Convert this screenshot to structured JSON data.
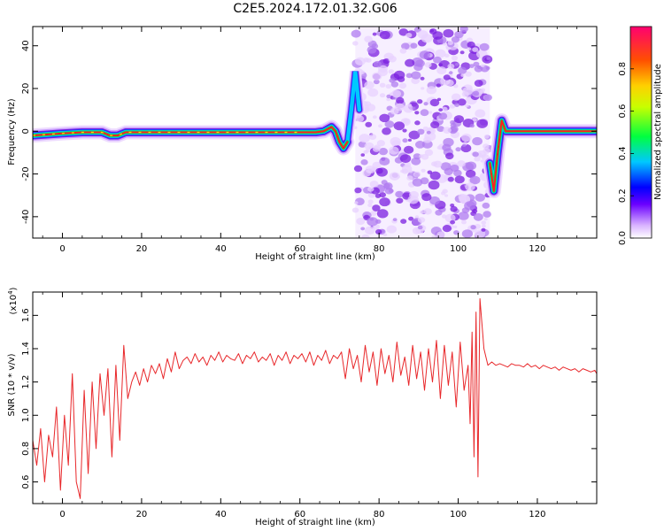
{
  "title": "C2E5.2024.172.01.32.G06",
  "colors": {
    "snr_line": "#e8272a",
    "ridge_core": "#ff1f1f",
    "noise_light": "#e8d2ff",
    "noise_dark": "#7b1fe0"
  },
  "chart_data": [
    {
      "type": "heatmap",
      "name": "spectrogram",
      "xlabel": "Height of straight line (km)",
      "ylabel": "Frequency (Hz)",
      "xlim": [
        -7.5,
        135
      ],
      "ylim": [
        -50,
        49
      ],
      "xticks": [
        0,
        20,
        40,
        60,
        80,
        100,
        120
      ],
      "xtick_labels": [
        "0",
        "20",
        "40",
        "60",
        "80",
        "100",
        "120"
      ],
      "yticks": [
        -40,
        -20,
        0,
        20,
        40
      ],
      "ytick_labels": [
        "-40",
        "-20",
        "0",
        "20",
        "40"
      ],
      "ridge": {
        "x": [
          -7.5,
          0,
          5,
          10,
          12,
          14,
          16,
          20,
          30,
          40,
          50,
          60,
          64,
          66,
          68,
          69,
          70,
          71,
          72
        ],
        "y": [
          -2,
          -1,
          -0.5,
          -0.5,
          -2,
          -2,
          -0.5,
          -0.5,
          -0.5,
          -0.5,
          -0.5,
          -0.5,
          -0.5,
          0,
          2,
          0,
          -5,
          -8,
          -5
        ]
      },
      "disturbance_edge": {
        "x": [
          72,
          73,
          74,
          75
        ],
        "y": [
          -5,
          10,
          28,
          10
        ]
      },
      "noise_region_x": [
        74,
        108
      ],
      "right_ridge": {
        "x": [
          108,
          109,
          110,
          111,
          112,
          113,
          115,
          120,
          130,
          135
        ],
        "y": [
          -15,
          -28,
          -10,
          5,
          0,
          0,
          0,
          0,
          0,
          0
        ]
      },
      "colorbar": {
        "label": "Normalized spectral amplitude",
        "range": [
          0,
          1
        ],
        "ticks": [
          0,
          0.2,
          0.4,
          0.6,
          0.8
        ],
        "tick_labels": [
          "0.0",
          "0.2",
          "0.4",
          "0.6",
          "0.8"
        ]
      }
    },
    {
      "type": "line",
      "name": "snr",
      "xlabel": "Height of straight line (km)",
      "ylabel": "SNR (10 * v/v)",
      "scale_note": "(x10",
      "scale_exp": "4",
      "xlim": [
        -7.5,
        135
      ],
      "ylim": [
        0.47,
        1.74
      ],
      "xticks": [
        0,
        20,
        40,
        60,
        80,
        100,
        120
      ],
      "xtick_labels": [
        "0",
        "20",
        "40",
        "60",
        "80",
        "100",
        "120"
      ],
      "yticks": [
        0.6,
        0.8,
        1.0,
        1.2,
        1.4,
        1.6
      ],
      "ytick_labels": [
        "0.6",
        "0.8",
        "1.0",
        "1.2",
        "1.4",
        "1.6"
      ],
      "x": [
        -7.5,
        -6.5,
        -5.5,
        -4.5,
        -3.5,
        -2.5,
        -1.5,
        -0.5,
        0.5,
        1.5,
        2.5,
        3.5,
        4.5,
        5.5,
        6.5,
        7.5,
        8.5,
        9.5,
        10.5,
        11.5,
        12.5,
        13.5,
        14.5,
        15.5,
        16.5,
        17.5,
        18.5,
        19.5,
        20.5,
        21.5,
        22.5,
        23.5,
        24.5,
        25.5,
        26.5,
        27.5,
        28.5,
        29.5,
        30.5,
        31.5,
        32.5,
        33.5,
        34.5,
        35.5,
        36.5,
        37.5,
        38.5,
        39.5,
        40.5,
        41.5,
        42.5,
        43.5,
        44.5,
        45.5,
        46.5,
        47.5,
        48.5,
        49.5,
        50.5,
        51.5,
        52.5,
        53.5,
        54.5,
        55.5,
        56.5,
        57.5,
        58.5,
        59.5,
        60.5,
        61.5,
        62.5,
        63.5,
        64.5,
        65.5,
        66.5,
        67.5,
        68.5,
        69.5,
        70.5,
        71.5,
        72.5,
        73.5,
        74.5,
        75.5,
        76.5,
        77.5,
        78.5,
        79.5,
        80.5,
        81.5,
        82.5,
        83.5,
        84.5,
        85.5,
        86.5,
        87.5,
        88.5,
        89.5,
        90.5,
        91.5,
        92.5,
        93.5,
        94.5,
        95.5,
        96.5,
        97.5,
        98.5,
        99.5,
        100.5,
        101.5,
        102.5,
        103.0,
        103.5,
        104.0,
        104.5,
        105.0,
        105.5,
        106.5,
        107.5,
        108.5,
        109.5,
        110.5,
        111.5,
        112.5,
        113.5,
        114.5,
        115.5,
        116.5,
        117.5,
        118.5,
        119.5,
        120.5,
        121.5,
        122.5,
        123.5,
        124.5,
        125.5,
        126.5,
        127.5,
        128.5,
        129.5,
        130.5,
        131.5,
        132.5,
        133.5,
        134.5,
        135.0
      ],
      "y": [
        0.85,
        0.7,
        0.92,
        0.6,
        0.88,
        0.75,
        1.05,
        0.55,
        1.0,
        0.7,
        1.25,
        0.6,
        0.5,
        1.15,
        0.65,
        1.2,
        0.8,
        1.25,
        1.0,
        1.28,
        0.75,
        1.3,
        0.85,
        1.42,
        1.1,
        1.2,
        1.26,
        1.18,
        1.28,
        1.2,
        1.3,
        1.25,
        1.31,
        1.22,
        1.34,
        1.26,
        1.38,
        1.28,
        1.33,
        1.35,
        1.31,
        1.37,
        1.32,
        1.35,
        1.3,
        1.36,
        1.33,
        1.38,
        1.32,
        1.36,
        1.34,
        1.33,
        1.37,
        1.31,
        1.36,
        1.34,
        1.38,
        1.32,
        1.35,
        1.33,
        1.37,
        1.3,
        1.36,
        1.33,
        1.38,
        1.31,
        1.36,
        1.34,
        1.37,
        1.32,
        1.38,
        1.3,
        1.36,
        1.33,
        1.39,
        1.31,
        1.36,
        1.34,
        1.38,
        1.22,
        1.4,
        1.28,
        1.36,
        1.2,
        1.42,
        1.26,
        1.38,
        1.18,
        1.4,
        1.25,
        1.36,
        1.2,
        1.44,
        1.24,
        1.35,
        1.18,
        1.42,
        1.22,
        1.38,
        1.15,
        1.4,
        1.2,
        1.45,
        1.1,
        1.42,
        1.18,
        1.38,
        1.05,
        1.44,
        1.15,
        1.3,
        0.95,
        1.5,
        0.75,
        1.62,
        0.63,
        1.7,
        1.4,
        1.3,
        1.32,
        1.3,
        1.31,
        1.3,
        1.29,
        1.31,
        1.3,
        1.3,
        1.29,
        1.31,
        1.29,
        1.3,
        1.28,
        1.3,
        1.29,
        1.28,
        1.29,
        1.27,
        1.29,
        1.28,
        1.27,
        1.28,
        1.26,
        1.28,
        1.27,
        1.26,
        1.27,
        1.25
      ]
    }
  ]
}
